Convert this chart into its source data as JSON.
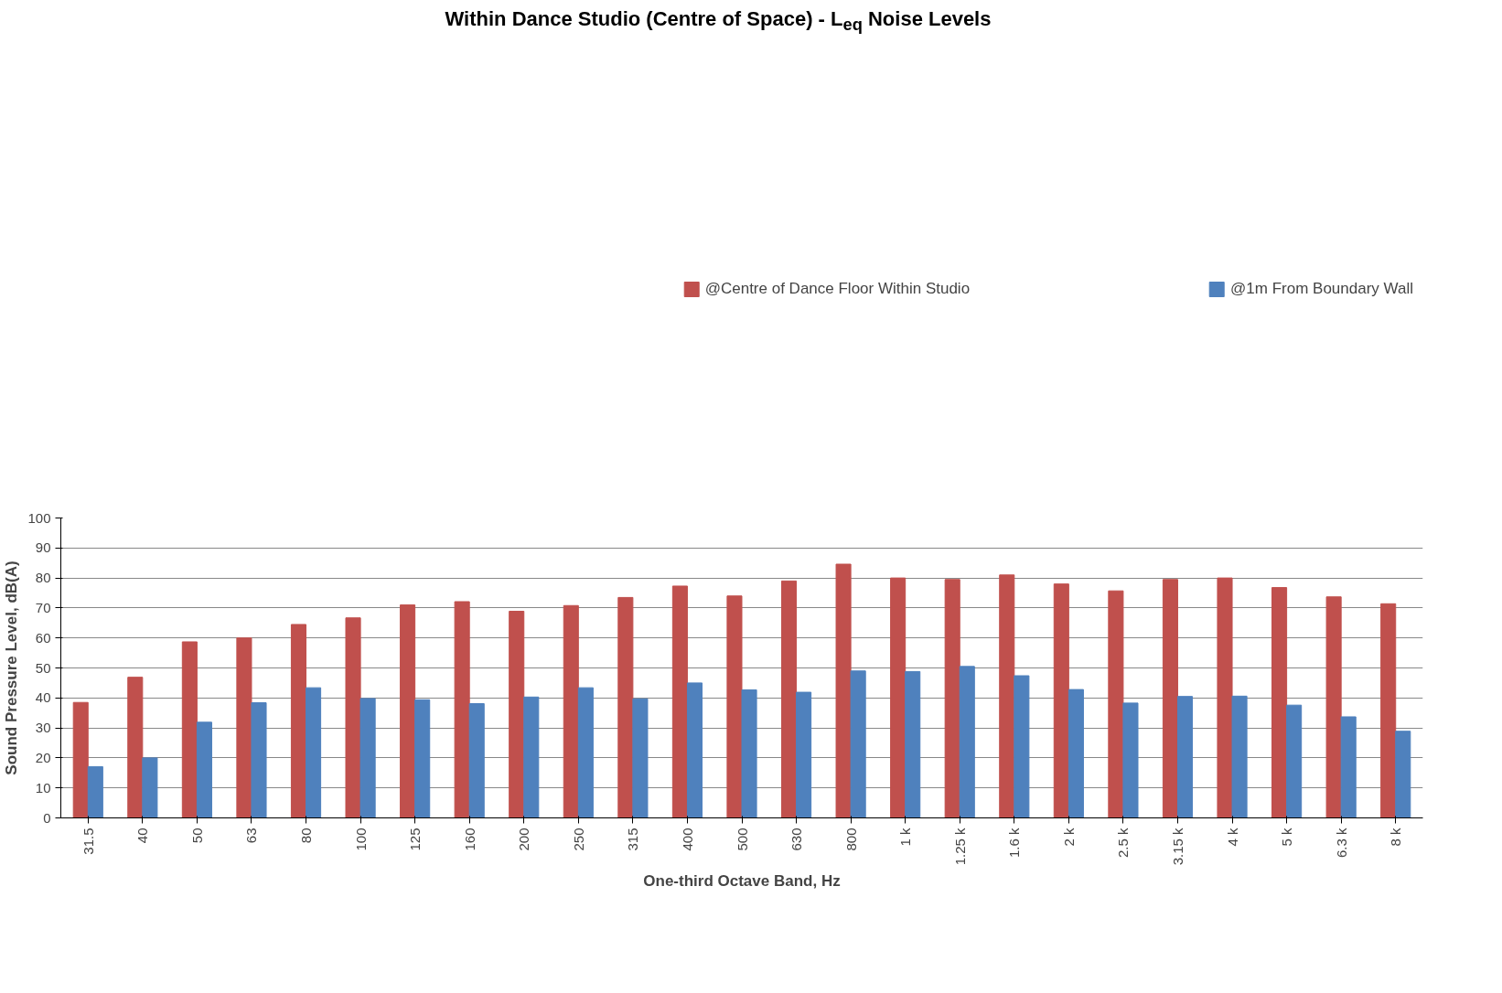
{
  "chart_data": {
    "type": "bar",
    "title": "Within Dance Studio (Centre of Space) - L$_{eq}$ Noise Levels",
    "xlabel": "One-third Octave Band, Hz",
    "ylabel": "Sound Pressure Level, dB(A)",
    "categories": [
      "31.5",
      "40",
      "50",
      "63",
      "80",
      "100",
      "125",
      "160",
      "200",
      "250",
      "315",
      "400",
      "500",
      "630",
      "800",
      "1 k",
      "1.25 k",
      "1.6 k",
      "2 k",
      "2.5 k",
      "3.15 k",
      "4 k",
      "5 k",
      "6.3 k",
      "8 k"
    ],
    "series": [
      {
        "name": "@Centre of Dance Floor Within Studio",
        "color": "#c0504d",
        "values": [
          38.5,
          46.9,
          58.7,
          60,
          64.5,
          66.7,
          71,
          72.1,
          68.9,
          70.8,
          73.5,
          77.3,
          74,
          79,
          84.6,
          80,
          79.5,
          81,
          78,
          75.7,
          79.5,
          80,
          76.8,
          73.7,
          71.4
        ]
      },
      {
        "name": "@1m From Boundary Wall",
        "color": "#4f81bd",
        "values": [
          17.1,
          20,
          31.9,
          38.4,
          43.4,
          39.8,
          39.4,
          38.1,
          40.3,
          43.4,
          39.7,
          45,
          42.7,
          41.9,
          49,
          48.8,
          50.5,
          47.4,
          42.8,
          38.3,
          40.5,
          40.6,
          37.6,
          33.7,
          28.9
        ]
      }
    ],
    "ylim": [
      0,
      100
    ],
    "yticks": [
      0,
      10,
      20,
      30,
      40,
      50,
      60,
      70,
      80,
      90,
      100
    ],
    "grid": "y",
    "legend": "top"
  }
}
